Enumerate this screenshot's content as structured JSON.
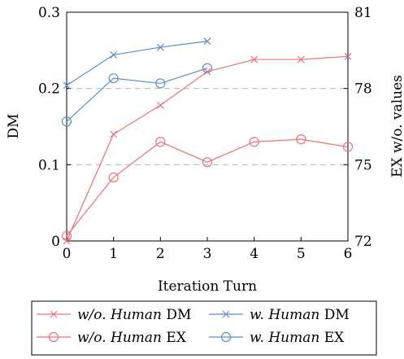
{
  "chart_data": {
    "type": "line",
    "x": [
      0,
      1,
      2,
      3,
      4,
      5,
      6
    ],
    "xlabel": "Iteration Turn",
    "ylabel_left": "DM",
    "ylabel_right": "EX w/o. values",
    "xlim": [
      0,
      6
    ],
    "ylim_left": [
      0,
      0.3
    ],
    "ylim_right": [
      72,
      81
    ],
    "xticks": [
      "0",
      "1",
      "2",
      "3",
      "4",
      "5",
      "6"
    ],
    "yticks_left": [
      "0",
      "0.1",
      "0.2",
      "0.3"
    ],
    "yticks_right": [
      "72",
      "75",
      "78",
      "81"
    ],
    "grid": "horizontal dashed at 0.1 and 0.2",
    "legend_position": "bottom",
    "series": [
      {
        "legend_italic": "w/o. Human",
        "legend_suffix": " DM",
        "axis": "left",
        "marker": "cross",
        "color": "#f0707a",
        "x": [
          0,
          1,
          2,
          3,
          4,
          5,
          6
        ],
        "values": [
          0.0,
          0.14,
          0.178,
          0.222,
          0.238,
          0.238,
          0.242
        ]
      },
      {
        "legend_italic": "w. Human",
        "legend_suffix": " DM",
        "axis": "left",
        "marker": "cross",
        "color": "#5b8fc7",
        "x": [
          0,
          1,
          2,
          3
        ],
        "values": [
          0.204,
          0.244,
          0.254,
          0.262
        ]
      },
      {
        "legend_italic": "w/o. Human",
        "legend_suffix": " EX",
        "axis": "right",
        "marker": "circle",
        "color": "#f0707a",
        "x": [
          0,
          1,
          2,
          3,
          4,
          5,
          6
        ],
        "values": [
          72.2,
          74.5,
          75.9,
          75.1,
          75.9,
          76.0,
          75.7
        ]
      },
      {
        "legend_italic": "w. Human",
        "legend_suffix": " EX",
        "axis": "right",
        "marker": "circle",
        "color": "#5b8fc7",
        "x": [
          0,
          1,
          2,
          3
        ],
        "values": [
          76.7,
          78.4,
          78.2,
          78.8
        ]
      }
    ]
  }
}
